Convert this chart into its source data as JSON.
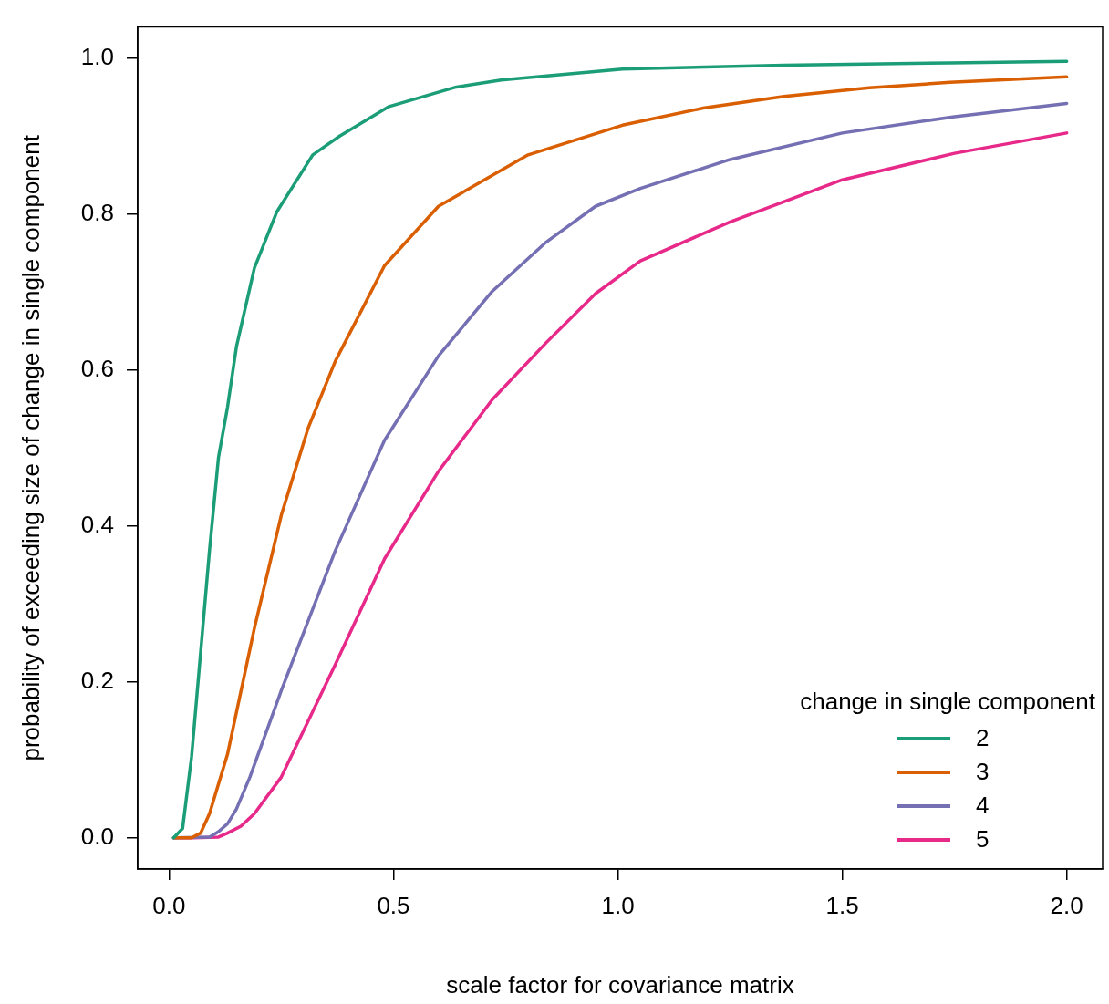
{
  "chart_data": {
    "type": "line",
    "xlabel": "scale factor for covariance matrix",
    "ylabel": "probability of exceeding size of change in single component",
    "legend_title": "change in single component",
    "xlim": [
      -0.07,
      2.08
    ],
    "ylim": [
      -0.04,
      1.04
    ],
    "xticks": [
      {
        "value": 0,
        "label": "0.0"
      },
      {
        "value": 0.5,
        "label": "0.5"
      },
      {
        "value": 1,
        "label": "1.0"
      },
      {
        "value": 1.5,
        "label": "1.5"
      },
      {
        "value": 2,
        "label": "2.0"
      }
    ],
    "yticks": [
      {
        "value": 0,
        "label": "0.0"
      },
      0.2,
      0.4,
      0.6,
      0.8,
      {
        "value": 1,
        "label": "1.0"
      }
    ],
    "grid": false,
    "legend": "bottom right",
    "marker": "none",
    "line_style": "solid",
    "series": [
      {
        "name": "2",
        "color": "#1b9e77",
        "x": [
          0.01,
          0.03,
          0.05,
          0.09,
          0.11,
          0.13,
          0.15,
          0.19,
          0.24,
          0.32,
          0.38,
          0.49,
          0.64,
          0.74,
          1.01,
          1.37,
          1.74,
          2.0
        ],
        "values": [
          0,
          0.012,
          0.104,
          0.369,
          0.488,
          0.552,
          0.63,
          0.731,
          0.803,
          0.876,
          0.9,
          0.938,
          0.963,
          0.972,
          0.986,
          0.991,
          0.994,
          0.996
        ]
      },
      {
        "name": "3",
        "color": "#d95f02",
        "x": [
          0.01,
          0.05,
          0.07,
          0.09,
          0.11,
          0.13,
          0.19,
          0.25,
          0.31,
          0.37,
          0.48,
          0.6,
          0.8,
          1.01,
          1.19,
          1.37,
          1.56,
          1.74,
          2.0
        ],
        "values": [
          0,
          0,
          0.006,
          0.031,
          0.069,
          0.107,
          0.269,
          0.414,
          0.526,
          0.611,
          0.734,
          0.81,
          0.876,
          0.914,
          0.936,
          0.951,
          0.962,
          0.969,
          0.976
        ]
      },
      {
        "name": "4",
        "color": "#7570b3",
        "x": [
          0.01,
          0.09,
          0.11,
          0.13,
          0.15,
          0.18,
          0.25,
          0.37,
          0.48,
          0.6,
          0.72,
          0.84,
          0.95,
          1.05,
          1.25,
          1.5,
          1.75,
          2.0
        ],
        "values": [
          0,
          0.001,
          0.008,
          0.018,
          0.037,
          0.078,
          0.189,
          0.368,
          0.51,
          0.618,
          0.701,
          0.764,
          0.81,
          0.833,
          0.87,
          0.904,
          0.925,
          0.942
        ]
      },
      {
        "name": "5",
        "color": "#e7298a",
        "x": [
          0.01,
          0.05,
          0.11,
          0.13,
          0.16,
          0.19,
          0.25,
          0.37,
          0.48,
          0.6,
          0.72,
          0.84,
          0.95,
          1.05,
          1.25,
          1.5,
          1.75,
          2.0
        ],
        "values": [
          0,
          0,
          0.001,
          0.006,
          0.015,
          0.031,
          0.078,
          0.222,
          0.358,
          0.47,
          0.562,
          0.635,
          0.698,
          0.74,
          0.79,
          0.844,
          0.878,
          0.904
        ]
      }
    ]
  }
}
